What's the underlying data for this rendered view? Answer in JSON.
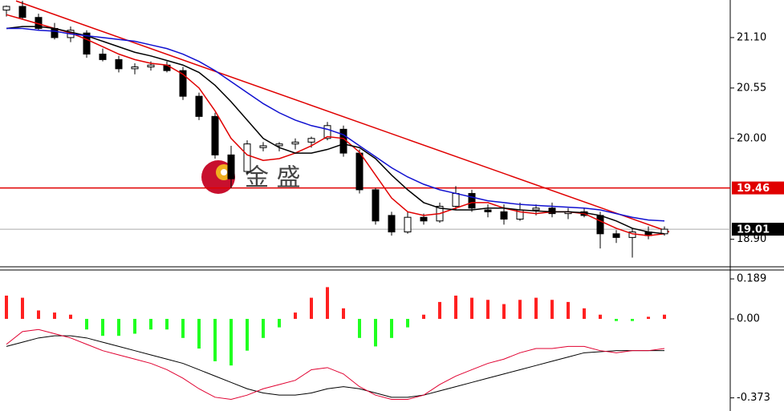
{
  "chart_data": [
    {
      "type": "candlestick",
      "open": [
        21.4,
        21.44,
        21.32,
        21.2,
        21.1,
        21.15,
        20.92,
        20.86,
        20.76,
        20.78,
        20.8,
        20.74,
        20.46,
        20.24,
        19.82,
        19.64,
        19.9,
        19.92,
        19.94,
        19.96,
        20.0,
        20.1,
        19.84,
        19.44,
        19.16,
        18.98,
        19.14,
        19.1,
        19.26,
        19.4,
        19.22,
        19.2,
        19.12,
        19.22,
        19.24,
        19.18,
        19.2,
        19.16,
        18.96,
        18.92,
        18.98,
        18.96
      ],
      "high": [
        21.45,
        21.5,
        21.36,
        21.26,
        21.22,
        21.18,
        20.98,
        20.9,
        20.82,
        20.84,
        20.84,
        20.78,
        20.5,
        20.28,
        19.92,
        19.98,
        19.96,
        19.96,
        20.0,
        20.02,
        20.18,
        20.14,
        19.88,
        19.46,
        19.2,
        19.2,
        19.18,
        19.3,
        19.48,
        19.44,
        19.28,
        19.28,
        19.3,
        19.28,
        19.3,
        19.24,
        19.24,
        19.2,
        19.0,
        19.02,
        19.04,
        19.04
      ],
      "low": [
        21.33,
        21.3,
        21.18,
        21.08,
        21.05,
        20.88,
        20.84,
        20.72,
        20.7,
        20.74,
        20.72,
        20.42,
        20.2,
        19.78,
        19.46,
        19.6,
        19.86,
        19.86,
        19.88,
        19.9,
        19.98,
        19.8,
        19.4,
        19.06,
        18.94,
        18.96,
        19.06,
        19.08,
        19.22,
        19.2,
        19.14,
        19.06,
        19.1,
        19.16,
        19.14,
        19.12,
        19.14,
        18.8,
        18.86,
        18.7,
        18.9,
        18.94
      ],
      "close": [
        21.44,
        21.32,
        21.2,
        21.1,
        21.18,
        20.92,
        20.86,
        20.76,
        20.78,
        20.8,
        20.74,
        20.46,
        20.24,
        19.82,
        19.56,
        19.94,
        19.92,
        19.94,
        19.96,
        20.0,
        20.14,
        19.84,
        19.44,
        19.1,
        18.98,
        19.14,
        19.1,
        19.26,
        19.4,
        19.24,
        19.2,
        19.12,
        19.22,
        19.24,
        19.18,
        19.2,
        19.16,
        18.96,
        18.92,
        18.98,
        18.94,
        19.01
      ],
      "lines": [
        {
          "color": "#e00000",
          "values": [
            21.35,
            21.3,
            21.25,
            21.2,
            21.15,
            21.08,
            21.0,
            20.92,
            20.86,
            20.82,
            20.8,
            20.7,
            20.55,
            20.3,
            20.0,
            19.82,
            19.76,
            19.78,
            19.84,
            19.92,
            20.02,
            20.0,
            19.85,
            19.6,
            19.35,
            19.2,
            19.16,
            19.18,
            19.24,
            19.3,
            19.3,
            19.24,
            19.2,
            19.18,
            19.2,
            19.2,
            19.18,
            19.1,
            19.02,
            18.96,
            18.94,
            18.96
          ]
        },
        {
          "color": "#000000",
          "values": [
            21.2,
            21.22,
            21.22,
            21.2,
            21.16,
            21.12,
            21.06,
            21.0,
            20.94,
            20.9,
            20.85,
            20.8,
            20.72,
            20.58,
            20.4,
            20.2,
            20.0,
            19.9,
            19.84,
            19.84,
            19.88,
            19.94,
            19.9,
            19.78,
            19.6,
            19.44,
            19.3,
            19.24,
            19.22,
            19.22,
            19.24,
            19.24,
            19.22,
            19.21,
            19.2,
            19.2,
            19.19,
            19.16,
            19.1,
            19.02,
            18.98,
            18.96
          ]
        },
        {
          "color": "#1010d0",
          "values": [
            21.2,
            21.2,
            21.18,
            21.17,
            21.14,
            21.12,
            21.1,
            21.08,
            21.06,
            21.02,
            20.98,
            20.92,
            20.84,
            20.74,
            20.62,
            20.5,
            20.38,
            20.28,
            20.2,
            20.14,
            20.1,
            20.04,
            19.92,
            19.8,
            19.68,
            19.58,
            19.5,
            19.44,
            19.4,
            19.36,
            19.32,
            19.3,
            19.28,
            19.27,
            19.26,
            19.25,
            19.24,
            19.22,
            19.18,
            19.14,
            19.11,
            19.1
          ]
        }
      ],
      "trendline": {
        "color": "#e00000",
        "x": [
          0.6,
          41.3
        ],
        "values": [
          21.5,
          18.98
        ]
      },
      "hlines": [
        {
          "value": 19.46,
          "color": "#e00000"
        },
        {
          "value": 19.01,
          "color": "#000000"
        }
      ],
      "watermark": "金 盛",
      "ylim": [
        18.6,
        21.51
      ],
      "yticks": [
        {
          "value": 21.1,
          "label": "21.10"
        },
        20.55,
        {
          "value": 20,
          "label": "20.00"
        },
        {
          "value": 18.9,
          "label": "18.90"
        }
      ]
    },
    {
      "type": "macd",
      "values": [
        0.11,
        0.1,
        0.04,
        0.03,
        0.02,
        -0.05,
        -0.08,
        -0.08,
        -0.07,
        -0.05,
        -0.05,
        -0.09,
        -0.14,
        -0.2,
        -0.22,
        -0.15,
        -0.09,
        -0.04,
        0.03,
        0.1,
        0.15,
        0.05,
        -0.09,
        -0.13,
        -0.09,
        -0.04,
        0.02,
        0.08,
        0.11,
        0.1,
        0.09,
        0.07,
        0.09,
        0.1,
        0.09,
        0.08,
        0.05,
        0.02,
        -0.01,
        -0.01,
        0.01,
        0.02
      ],
      "up_color": "#ff2020",
      "down_color": "#20ff20",
      "lines": [
        {
          "color": "#000000",
          "values": [
            -0.13,
            -0.11,
            -0.09,
            -0.08,
            -0.08,
            -0.09,
            -0.11,
            -0.13,
            -0.15,
            -0.17,
            -0.19,
            -0.21,
            -0.24,
            -0.27,
            -0.3,
            -0.33,
            -0.35,
            -0.36,
            -0.36,
            -0.35,
            -0.33,
            -0.32,
            -0.33,
            -0.35,
            -0.37,
            -0.37,
            -0.36,
            -0.34,
            -0.32,
            -0.3,
            -0.28,
            -0.26,
            -0.24,
            -0.22,
            -0.2,
            -0.18,
            -0.16,
            -0.155,
            -0.15,
            -0.15,
            -0.15,
            -0.15
          ]
        },
        {
          "color": "#e00030",
          "values": [
            -0.12,
            -0.06,
            -0.05,
            -0.07,
            -0.09,
            -0.12,
            -0.15,
            -0.17,
            -0.19,
            -0.21,
            -0.24,
            -0.28,
            -0.33,
            -0.37,
            -0.38,
            -0.36,
            -0.33,
            -0.31,
            -0.29,
            -0.24,
            -0.23,
            -0.26,
            -0.32,
            -0.36,
            -0.38,
            -0.38,
            -0.36,
            -0.31,
            -0.27,
            -0.24,
            -0.21,
            -0.19,
            -0.16,
            -0.14,
            -0.14,
            -0.13,
            -0.13,
            -0.15,
            -0.16,
            -0.15,
            -0.15,
            -0.14
          ]
        }
      ],
      "ylim": [
        -0.435,
        0.231
      ],
      "yticks": [
        0.189,
        {
          "value": 0,
          "label": "0.00"
        },
        -0.373
      ]
    }
  ]
}
